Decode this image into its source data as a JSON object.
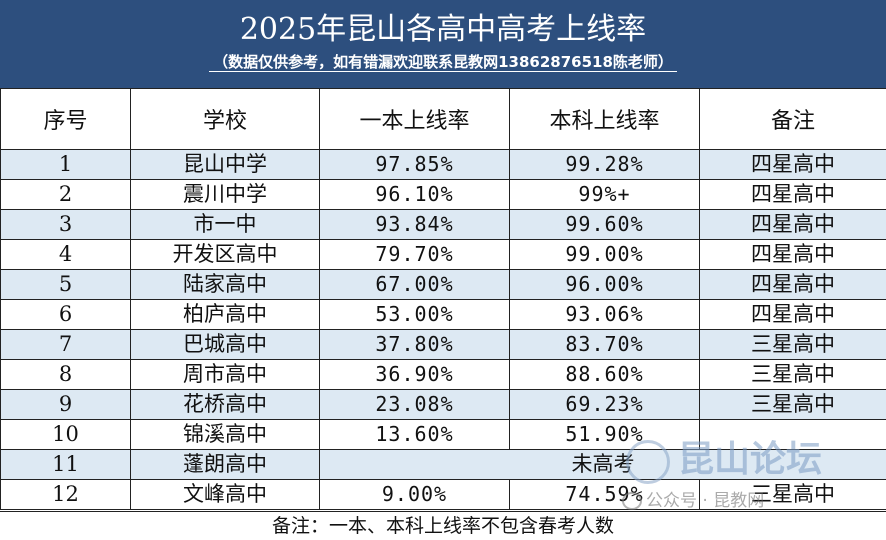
{
  "header": {
    "title": "2025年昆山各高中高考上线率",
    "subtitle": "（数据仅供参考，如有错漏欢迎联系昆教网13862876518陈老师）",
    "background": "#2d4f7e"
  },
  "table": {
    "columns": [
      "序号",
      "学校",
      "一本上线率",
      "本科上线率",
      "备注"
    ],
    "rows": [
      {
        "no": "1",
        "school": "昆山中学",
        "first_tier": "97.85%",
        "undergrad": "99.28%",
        "note": "四星高中"
      },
      {
        "no": "2",
        "school": "震川中学",
        "first_tier": "96.10%",
        "undergrad": "99%+",
        "note": "四星高中"
      },
      {
        "no": "3",
        "school": "市一中",
        "first_tier": "93.84%",
        "undergrad": "99.60%",
        "note": "四星高中"
      },
      {
        "no": "4",
        "school": "开发区高中",
        "first_tier": "79.70%",
        "undergrad": "99.00%",
        "note": "四星高中"
      },
      {
        "no": "5",
        "school": "陆家高中",
        "first_tier": "67.00%",
        "undergrad": "96.00%",
        "note": "四星高中"
      },
      {
        "no": "6",
        "school": "柏庐高中",
        "first_tier": "53.00%",
        "undergrad": "93.06%",
        "note": "四星高中"
      },
      {
        "no": "7",
        "school": "巴城高中",
        "first_tier": "37.80%",
        "undergrad": "83.70%",
        "note": "三星高中"
      },
      {
        "no": "8",
        "school": "周市高中",
        "first_tier": "36.90%",
        "undergrad": "88.60%",
        "note": "三星高中"
      },
      {
        "no": "9",
        "school": "花桥高中",
        "first_tier": "23.08%",
        "undergrad": "69.23%",
        "note": "三星高中"
      },
      {
        "no": "10",
        "school": "锦溪高中",
        "first_tier": "13.60%",
        "undergrad": "51.90%",
        "note": ""
      },
      {
        "no": "11",
        "school": "蓬朗高中",
        "merged": "未高考"
      },
      {
        "no": "12",
        "school": "文峰高中",
        "first_tier": "9.00%",
        "undergrad": "74.59%",
        "note": "三星高中"
      }
    ],
    "shade_color": "#dde9f3"
  },
  "footer": {
    "text": "备注：一本、本科上线率不包含春考人数"
  },
  "watermark": {
    "brand": "昆山论坛",
    "account": "公众号 · 昆教网",
    "icon": "forum-logo-icon"
  }
}
